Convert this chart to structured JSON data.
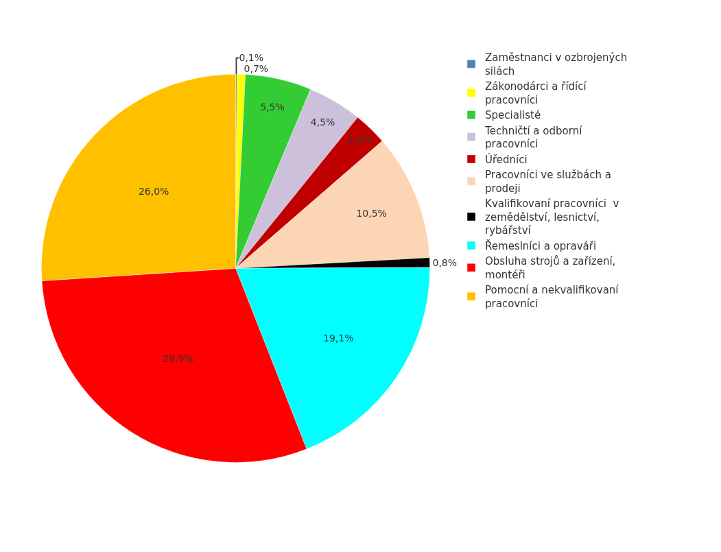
{
  "chart_data": {
    "type": "pie",
    "categories": [
      "Zaměstnanci v ozbrojených silách",
      "Zákonodárci a řídící pracovníci",
      "Specialisté",
      "Techničtí a odborní  pracovníci",
      "Úředníci",
      "Pracovníci ve službách a prodeji",
      "Kvalifikovaní pracovníci  v zemědělství, lesnictví, rybářství",
      "Řemeslníci a opraváři",
      "Obsluha strojů a zařízení, montéři",
      "Pomocní a nekvalifikovaní pracovníci"
    ],
    "values": [
      0.1,
      0.7,
      5.5,
      4.5,
      2.8,
      10.5,
      0.8,
      19.1,
      29.9,
      26.0
    ],
    "value_labels": [
      "0,1%",
      "0,7%",
      "5,5%",
      "4,5%",
      "2,8%",
      "10,5%",
      "0,8%",
      "19,1%",
      "29,9%",
      "26,0%"
    ],
    "colors": [
      "#4f81bd",
      "#ffff00",
      "#33cc33",
      "#ccc0da",
      "#c00000",
      "#fcd5b5",
      "#000000",
      "#00ffff",
      "#ff0000",
      "#ffc000"
    ],
    "legend": "right"
  }
}
